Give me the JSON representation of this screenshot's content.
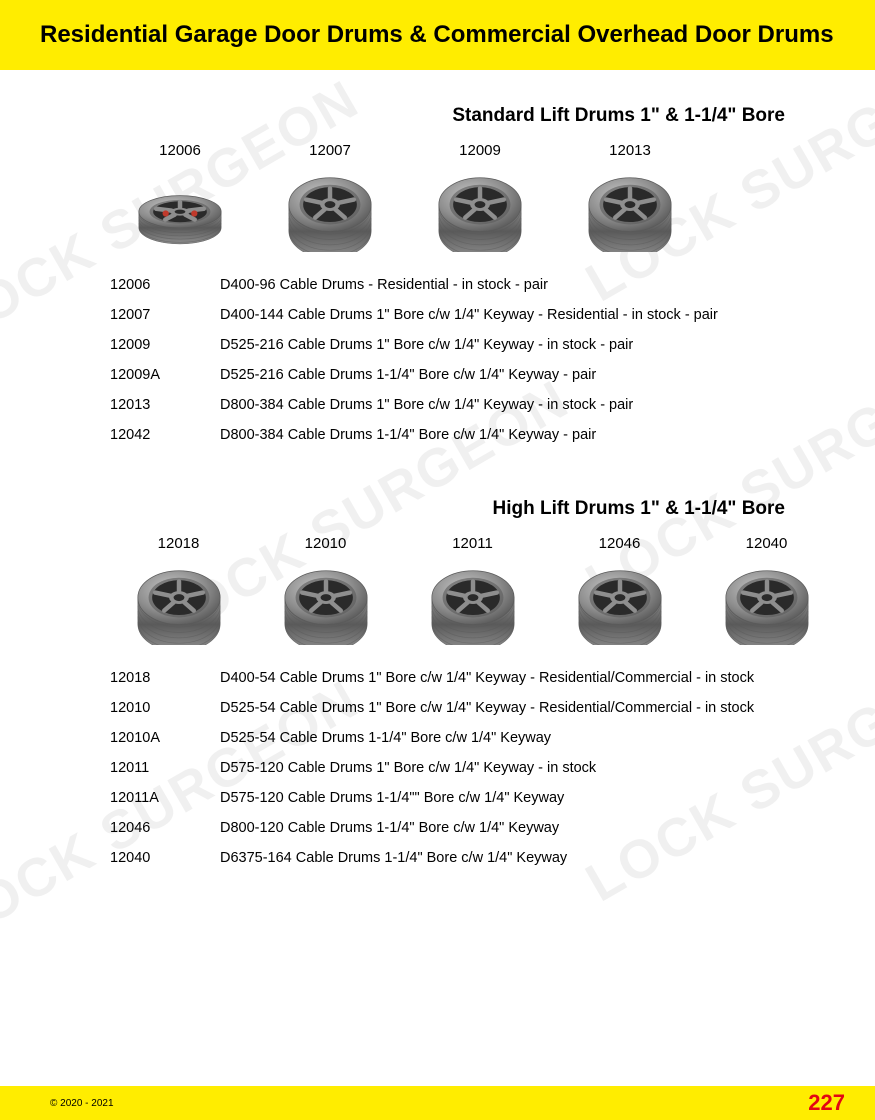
{
  "header": {
    "title": "Residential Garage Door Drums & Commercial Overhead Door Drums",
    "band_color": "#ffed00",
    "title_color": "#000000",
    "title_fontsize": 24
  },
  "watermark": {
    "text": "LOCK SURGEON",
    "color": "rgba(0,0,0,0.06)",
    "rotation_deg": -30,
    "fontsize": 54
  },
  "section1": {
    "title": "Standard Lift Drums 1\" & 1-1/4\" Bore",
    "products": [
      {
        "code": "12006"
      },
      {
        "code": "12007"
      },
      {
        "code": "12009"
      },
      {
        "code": "12013"
      }
    ],
    "specs": [
      {
        "code": "12006",
        "desc": "D400-96 Cable Drums - Residential - in stock - pair"
      },
      {
        "code": "12007",
        "desc": "D400-144 Cable Drums 1\" Bore c/w 1/4\" Keyway - Residential - in stock - pair"
      },
      {
        "code": "12009",
        "desc": "D525-216 Cable Drums 1\" Bore c/w 1/4\" Keyway - in stock - pair"
      },
      {
        "code": "12009A",
        "desc": "D525-216 Cable Drums 1-1/4\" Bore c/w 1/4\" Keyway - pair"
      },
      {
        "code": "12013",
        "desc": "D800-384 Cable Drums 1\" Bore c/w 1/4\" Keyway - in stock - pair"
      },
      {
        "code": "12042",
        "desc": "D800-384 Cable Drums 1-1/4\" Bore c/w 1/4\" Keyway  - pair"
      }
    ]
  },
  "section2": {
    "title": "High Lift Drums 1\" & 1-1/4\" Bore",
    "products": [
      {
        "code": "12018"
      },
      {
        "code": "12010"
      },
      {
        "code": "12011"
      },
      {
        "code": "12046"
      },
      {
        "code": "12040"
      }
    ],
    "specs": [
      {
        "code": "12018",
        "desc": "D400-54 Cable Drums 1\" Bore c/w 1/4\" Keyway - Residential/Commercial - in stock"
      },
      {
        "code": "12010",
        "desc": "D525-54 Cable Drums 1\" Bore c/w 1/4\" Keyway - Residential/Commercial - in stock"
      },
      {
        "code": "12010A",
        "desc": "D525-54 Cable Drums 1-1/4\" Bore c/w 1/4\" Keyway"
      },
      {
        "code": "12011",
        "desc": "D575-120 Cable Drums 1\" Bore c/w 1/4\" Keyway - in stock"
      },
      {
        "code": "12011A",
        "desc": "D575-120 Cable Drums 1-1/4\"\" Bore c/w 1/4\" Keyway"
      },
      {
        "code": "12046",
        "desc": "D800-120 Cable Drums 1-1/4\" Bore c/w 1/4\" Keyway"
      },
      {
        "code": "12040",
        "desc": "D6375-164 Cable Drums 1-1/4\" Bore c/w 1/4\" Keyway"
      }
    ]
  },
  "footer": {
    "copyright": "© 2020 - 2021",
    "page_number": "227",
    "band_color": "#ffed00",
    "page_num_color": "#e30613"
  },
  "drum_style": {
    "body_color": "#8e8e8e",
    "highlight": "#c8c8c8",
    "shadow": "#5a5a5a",
    "hub_dark": "#2a2a2a"
  }
}
